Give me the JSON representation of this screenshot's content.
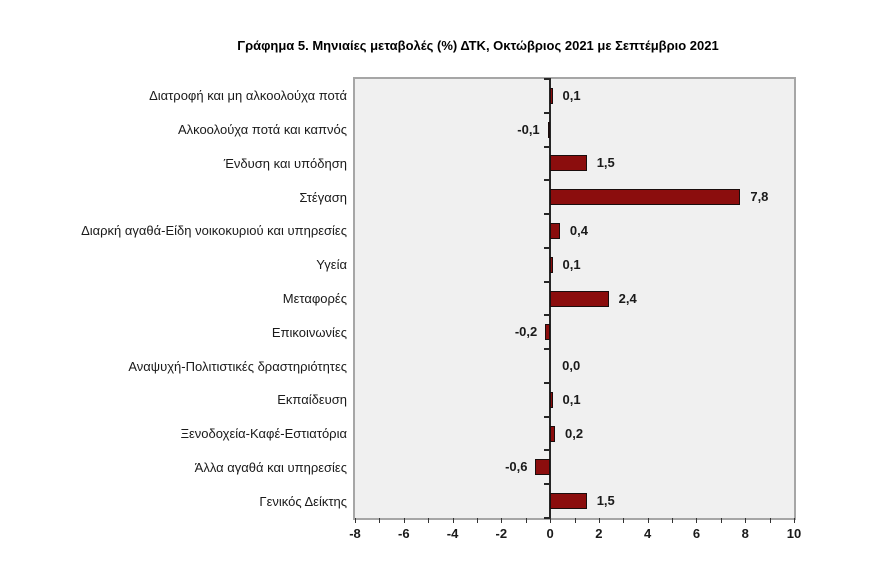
{
  "chart_data": {
    "type": "bar",
    "orientation": "horizontal",
    "title": "Γράφημα 5. Μηνιαίες μεταβολές (%) ΔΤΚ, Οκτώβριος 2021 με Σεπτέμβριο 2021",
    "categories": [
      "Διατροφή και μη αλκοολούχα ποτά",
      "Αλκοολούχα ποτά και καπνός",
      "Ένδυση και υπόδηση",
      "Στέγαση",
      "Διαρκή αγαθά-Είδη νοικοκυριού και υπηρεσίες",
      "Υγεία",
      "Μεταφορές",
      "Επικοινωνίες",
      "Αναψυχή-Πολιτιστικές δραστηριότητες",
      "Εκπαίδευση",
      "Ξενοδοχεία-Καφέ-Εστιατόρια",
      "Άλλα αγαθά και υπηρεσίες",
      "Γενικός Δείκτης"
    ],
    "values": [
      0.1,
      -0.1,
      1.5,
      7.8,
      0.4,
      0.1,
      2.4,
      -0.2,
      0.0,
      0.1,
      0.2,
      -0.6,
      1.5
    ],
    "value_labels": [
      "0,1",
      "-0,1",
      "1,5",
      "7,8",
      "0,4",
      "0,1",
      "2,4",
      "-0,2",
      "0,0",
      "0,1",
      "0,2",
      "-0,6",
      "1,5"
    ],
    "xlim": [
      -8,
      10
    ],
    "xtick_labels": [
      "-8",
      "-6",
      "-4",
      "-2",
      "0",
      "2",
      "4",
      "6",
      "8",
      "10"
    ],
    "xticks_major": [
      -8,
      -6,
      -4,
      -2,
      0,
      2,
      4,
      6,
      8,
      10
    ],
    "minor_tick_step": 1,
    "grid": false,
    "legend": false,
    "colors": {
      "bar_fill": "#8B0D0D",
      "bar_border": "#1A0D0D",
      "plot_background": "#F0F0F0",
      "plot_border": "#A6A6A6",
      "axis_line": "#262626",
      "text": "#1A1A1A"
    }
  }
}
